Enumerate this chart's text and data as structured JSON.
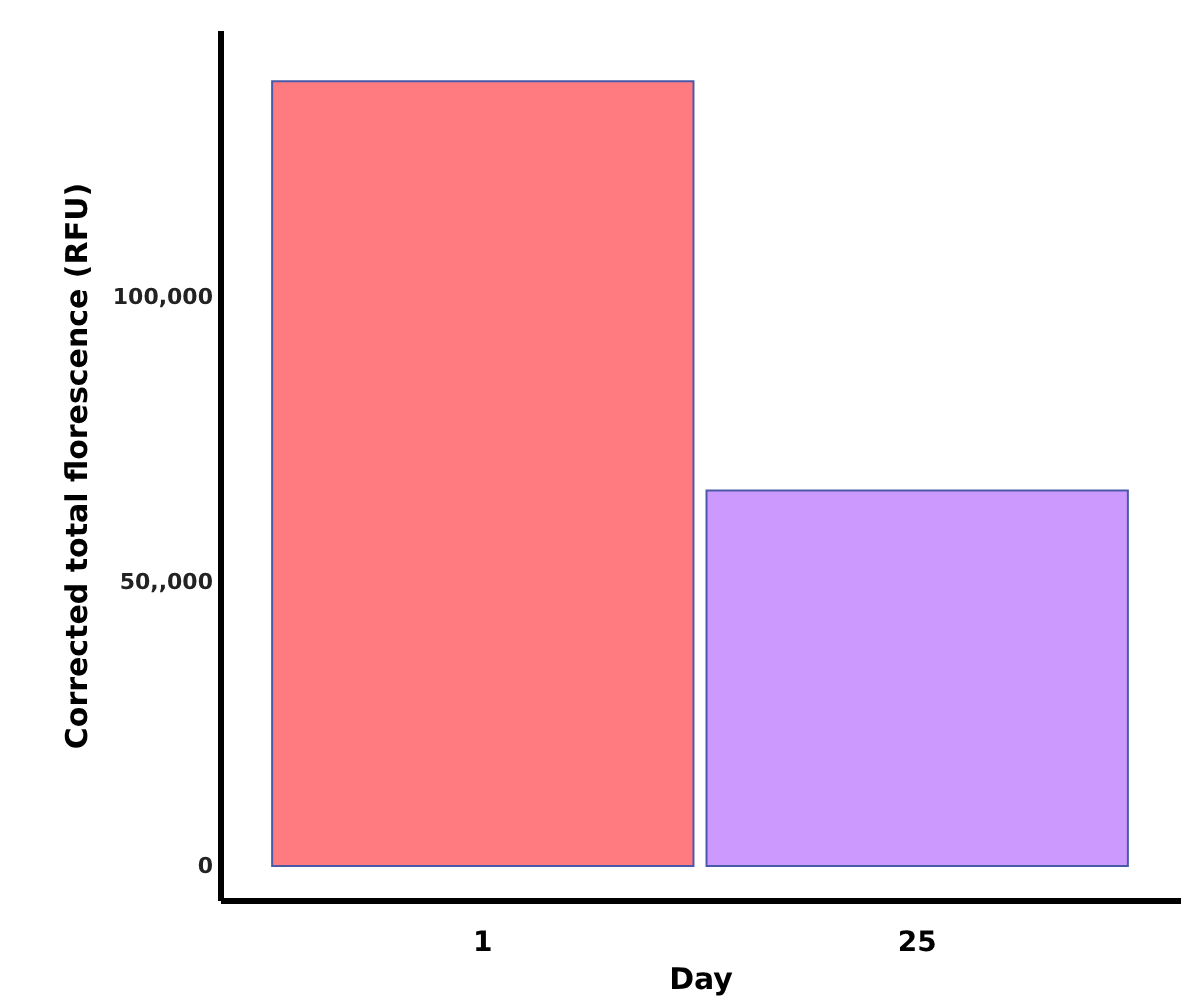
{
  "chart_data": {
    "type": "bar",
    "xlabel": "Day",
    "ylabel": "Corrected total florescence (RFU)",
    "categories": [
      "1",
      "25"
    ],
    "values": [
      138000,
      66000
    ],
    "colors": [
      "#ff7b80",
      "#cc99ff"
    ],
    "ylim": [
      -6000,
      147000
    ],
    "yticks": [
      0,
      {
        "value": 50000,
        "label": "50,,000"
      },
      {
        "value": 100000,
        "label": "100,000"
      }
    ],
    "grid": false
  }
}
